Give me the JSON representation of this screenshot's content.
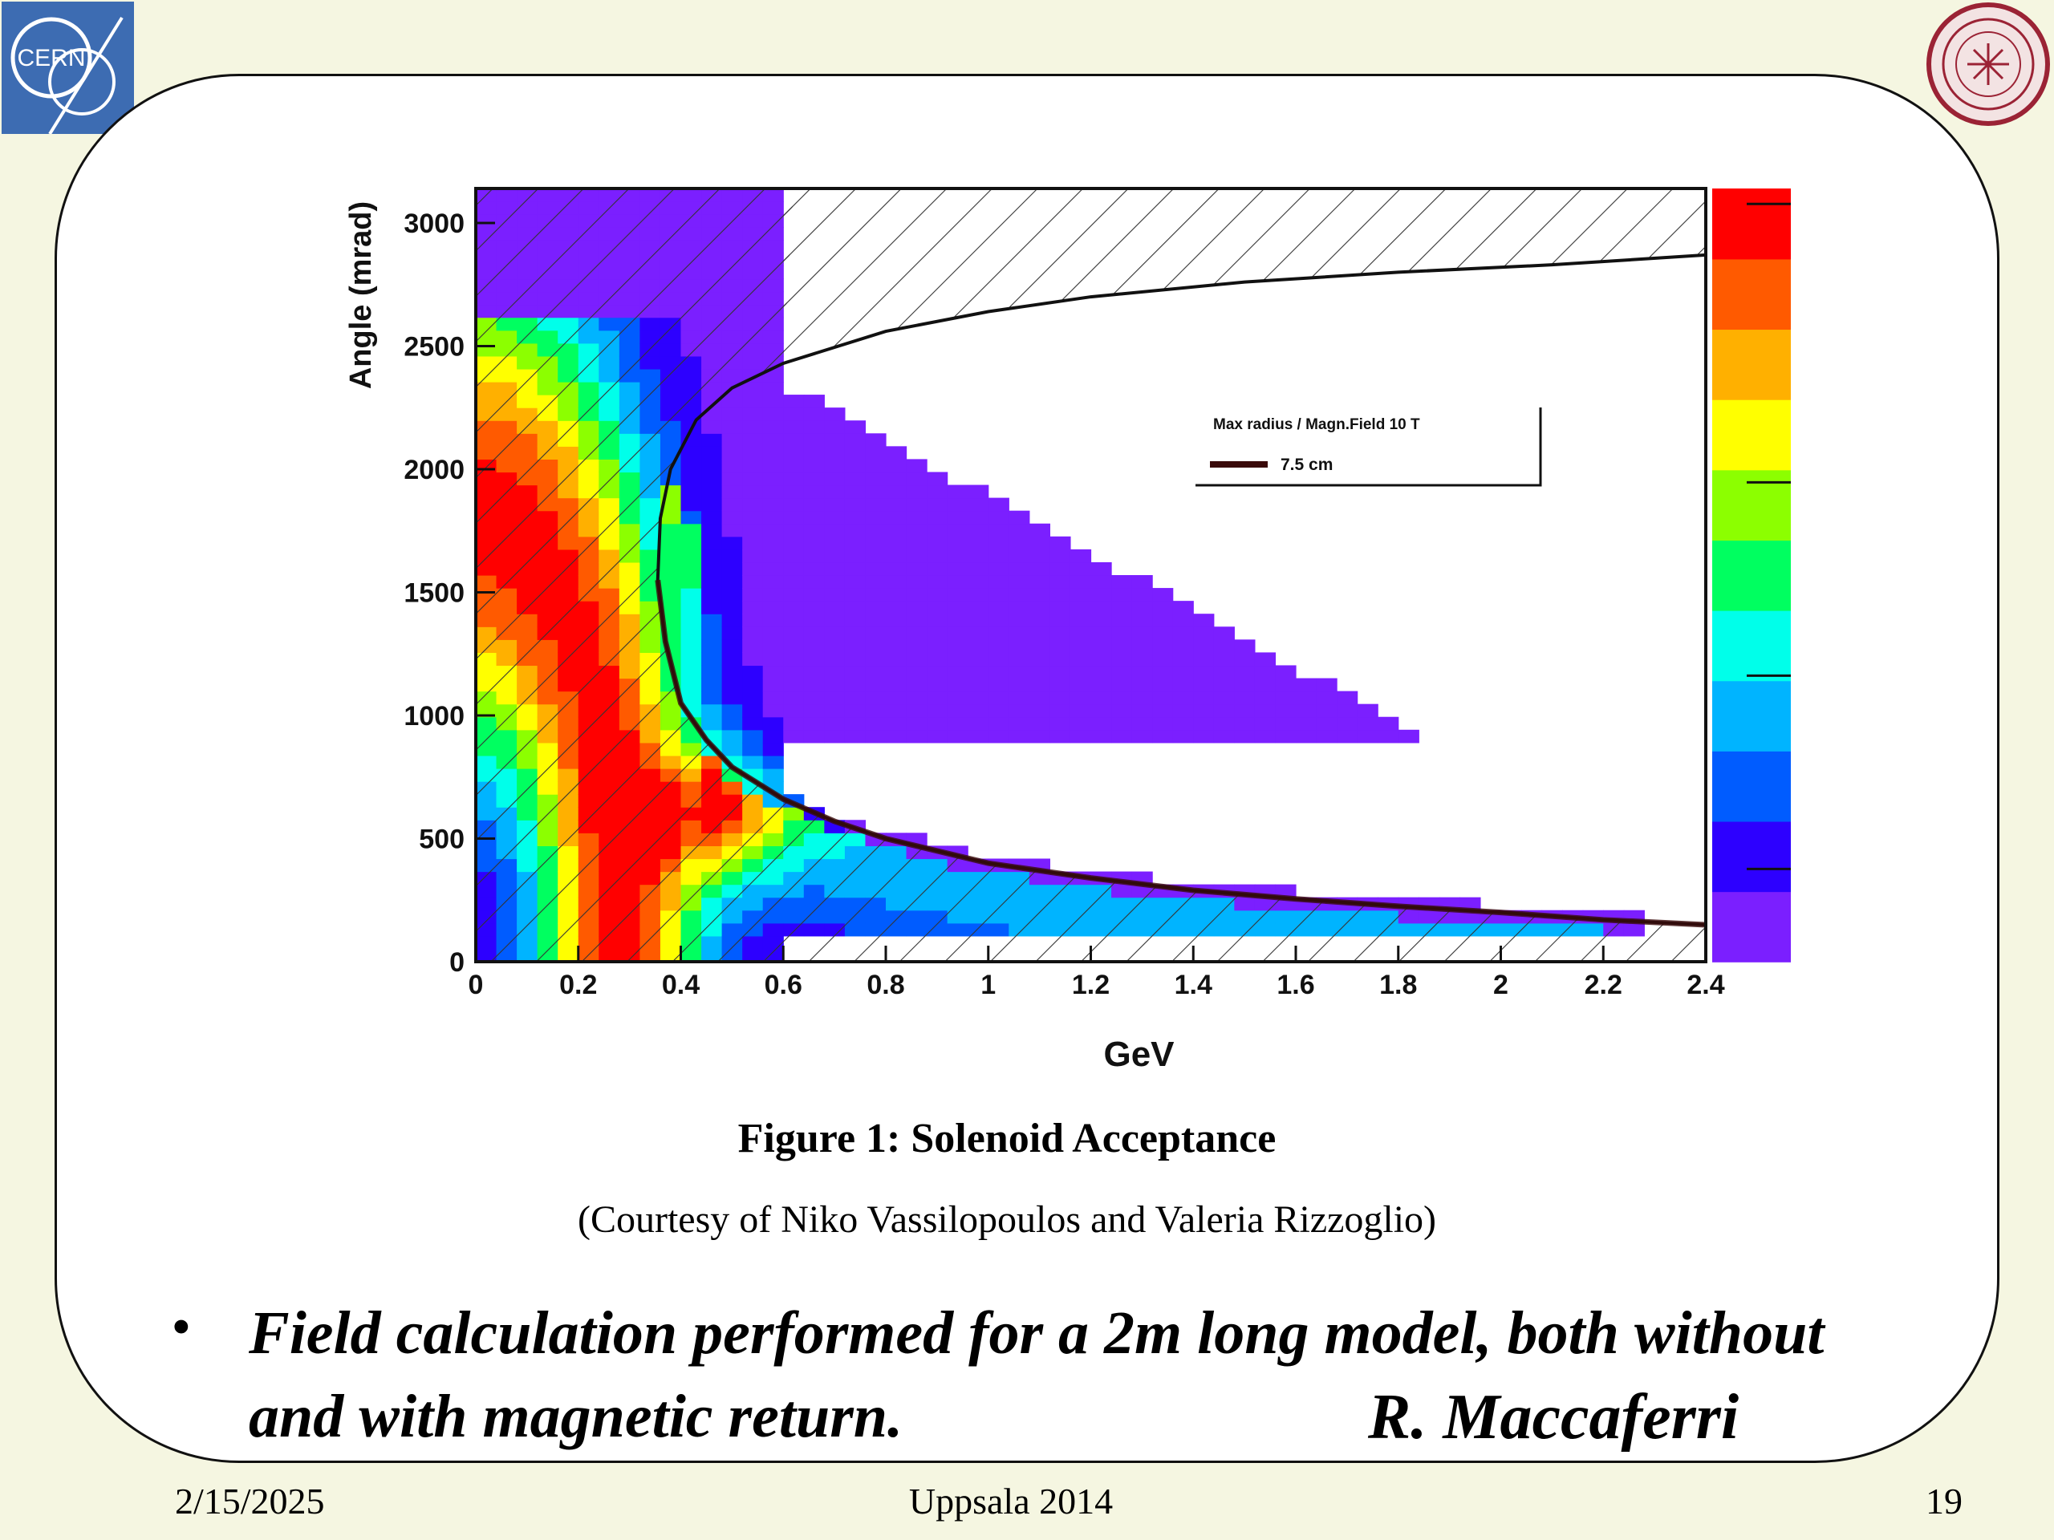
{
  "logos": {
    "left": {
      "text": "CERN",
      "icon": "cern-logo-icon",
      "color": "#3d6cb2"
    },
    "right": {
      "icon": "uppsala-university-seal-icon",
      "color": "#9b2335"
    }
  },
  "chart_data": {
    "type": "heatmap",
    "title": "",
    "xlabel": "GeV",
    "ylabel": "Angle (mrad)",
    "xlim": [
      0,
      2.4
    ],
    "ylim": [
      0,
      3140
    ],
    "x_ticks": [
      "0",
      "0.2",
      "0.4",
      "0.6",
      "0.8",
      "1",
      "1.2",
      "1.4",
      "1.6",
      "1.8",
      "2",
      "2.2",
      "2.4"
    ],
    "y_ticks": [
      "0",
      "500",
      "1000",
      "1500",
      "2000",
      "2500",
      "3000"
    ],
    "colorscale": [
      "#7b1fff",
      "#2d00ff",
      "#005cff",
      "#00b4ff",
      "#00ffea",
      "#00ff60",
      "#8cff00",
      "#ffff00",
      "#ffb000",
      "#ff5a00",
      "#ff0000"
    ],
    "hot_spot": {
      "x": 0.47,
      "y": 600
    },
    "legend": {
      "header": "Max radius / Magn.Field 10 T",
      "entries": [
        {
          "label": "7.5 cm",
          "color": "#3a0a0a"
        }
      ],
      "position": "top-right"
    },
    "acceptance_boundary": [
      [
        2.4,
        150
      ],
      [
        2.2,
        170
      ],
      [
        2.0,
        200
      ],
      [
        1.8,
        225
      ],
      [
        1.6,
        255
      ],
      [
        1.4,
        290
      ],
      [
        1.2,
        340
      ],
      [
        1.0,
        400
      ],
      [
        0.8,
        500
      ],
      [
        0.7,
        570
      ],
      [
        0.6,
        660
      ],
      [
        0.5,
        790
      ],
      [
        0.45,
        900
      ],
      [
        0.4,
        1050
      ],
      [
        0.37,
        1300
      ],
      [
        0.355,
        1550
      ],
      [
        0.36,
        1800
      ],
      [
        0.38,
        2000
      ],
      [
        0.43,
        2200
      ],
      [
        0.5,
        2330
      ],
      [
        0.6,
        2430
      ],
      [
        0.8,
        2560
      ],
      [
        1.0,
        2640
      ],
      [
        1.2,
        2700
      ],
      [
        1.5,
        2760
      ],
      [
        1.8,
        2800
      ],
      [
        2.1,
        2830
      ],
      [
        2.4,
        2870
      ]
    ]
  },
  "figure": {
    "caption": "Figure 1: Solenoid Acceptance",
    "credit": "(Courtesy of Niko Vassilopoulos and Valeria Rizzoglio)"
  },
  "bullet": {
    "text": "Field calculation performed for a 2m long model, both without and with magnetic return.",
    "author": "R. Maccaferri"
  },
  "footer": {
    "date": "2/15/2025",
    "event": "Uppsala 2014",
    "page": "19"
  }
}
